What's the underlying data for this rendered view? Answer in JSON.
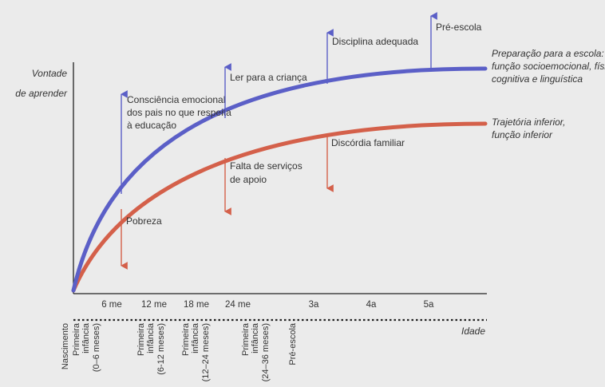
{
  "y_axis_label": [
    "Vontade",
    "de aprender"
  ],
  "x_axis_label": "Idade",
  "colors": {
    "upper": "#5b5fc7",
    "lower": "#d4604a",
    "axis": "#222222",
    "background": "#ebebeb"
  },
  "curves": {
    "upper_label": [
      "Preparação para a escola:",
      "função socioemocional, física,",
      "cognitiva e linguística"
    ],
    "lower_label": [
      "Trajetória inferior,",
      "função inferior"
    ]
  },
  "positive_factors": [
    {
      "lines": [
        "Consciência emocional",
        "dos pais no que respeita",
        "à educação"
      ]
    },
    {
      "lines": [
        "Ler para a criança"
      ]
    },
    {
      "lines": [
        "Disciplina adequada"
      ]
    },
    {
      "lines": [
        "Pré-escola"
      ]
    }
  ],
  "negative_factors": [
    {
      "lines": [
        "Pobreza"
      ]
    },
    {
      "lines": [
        "Falta de serviços",
        "de apoio"
      ]
    },
    {
      "lines": [
        "Discórdia familiar"
      ]
    }
  ],
  "age_ticks": [
    "6 me",
    "12 me",
    "18 me",
    "24 me",
    "3a",
    "4a",
    "5a"
  ],
  "stages": [
    {
      "lines": [
        "Nascimento"
      ]
    },
    {
      "lines": [
        "Primeira",
        "infância",
        "(0–6 meses)"
      ]
    },
    {
      "lines": [
        "Primeira",
        "infância",
        "(6-12 meses)"
      ]
    },
    {
      "lines": [
        "Primeira",
        "infância",
        "(12–24 meses)"
      ]
    },
    {
      "lines": [
        "Primeira",
        "infância",
        "(24–36 meses)"
      ]
    },
    {
      "lines": [
        "Pré-escola"
      ]
    }
  ]
}
